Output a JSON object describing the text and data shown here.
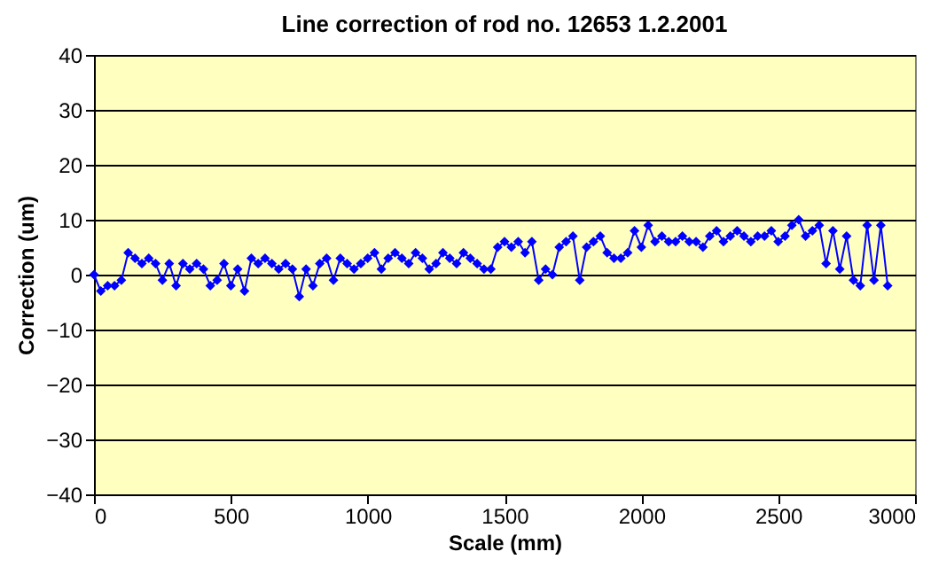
{
  "chart_data": {
    "type": "line",
    "title": "Line correction of rod no. 12653 1.2.2001",
    "xlabel": "Scale (mm)",
    "ylabel": "Correction (um)",
    "series": [
      {
        "color": "#0000ff",
        "x": [
          0,
          25,
          50,
          75,
          100,
          125,
          150,
          175,
          200,
          225,
          250,
          275,
          300,
          325,
          350,
          375,
          400,
          425,
          450,
          475,
          500,
          525,
          550,
          575,
          600,
          625,
          650,
          675,
          700,
          725,
          750,
          775,
          800,
          825,
          850,
          875,
          900,
          925,
          950,
          975,
          1000,
          1025,
          1050,
          1075,
          1100,
          1125,
          1150,
          1175,
          1200,
          1225,
          1250,
          1275,
          1300,
          1325,
          1350,
          1375,
          1400,
          1425,
          1450,
          1475,
          1500,
          1525,
          1550,
          1575,
          1600,
          1625,
          1650,
          1675,
          1700,
          1725,
          1750,
          1775,
          1800,
          1825,
          1850,
          1875,
          1900,
          1925,
          1950,
          1975,
          2000,
          2025,
          2050,
          2075,
          2100,
          2125,
          2150,
          2175,
          2200,
          2225,
          2250,
          2275,
          2300,
          2325,
          2350,
          2375,
          2400,
          2425,
          2450,
          2475,
          2500,
          2525,
          2550,
          2575,
          2600,
          2625,
          2650,
          2675,
          2700,
          2725,
          2750,
          2775,
          2800,
          2825,
          2850,
          2875,
          2900
        ],
        "values": [
          0,
          -3,
          -2,
          -2,
          -1,
          4,
          3,
          2,
          3,
          2,
          -1,
          2,
          -2,
          2,
          1,
          2,
          1,
          -2,
          -1,
          2,
          -2,
          1,
          -3,
          3,
          2,
          3,
          2,
          1,
          2,
          1,
          -4,
          1,
          -2,
          2,
          3,
          -1,
          3,
          2,
          1,
          2,
          3,
          4,
          1,
          3,
          4,
          3,
          2,
          4,
          3,
          1,
          2,
          4,
          3,
          2,
          4,
          3,
          2,
          1,
          1,
          5,
          6,
          5,
          6,
          4,
          6,
          -1,
          1,
          0,
          5,
          6,
          7,
          -1,
          5,
          6,
          7,
          4,
          3,
          3,
          4,
          8,
          5,
          9,
          6,
          7,
          6,
          6,
          7,
          6,
          6,
          5,
          7,
          8,
          6,
          7,
          8,
          7,
          6,
          7,
          7,
          8,
          6,
          7,
          9,
          10,
          7,
          8,
          9,
          2,
          8,
          1,
          7,
          -1,
          -2,
          9,
          -1,
          9,
          -2
        ]
      }
    ],
    "xlim": [
      0,
      3000
    ],
    "xticks": [
      0,
      500,
      1000,
      1500,
      2000,
      2500,
      3000
    ],
    "ylim": [
      -40,
      40
    ],
    "yticks": [
      -40,
      -30,
      -20,
      -10,
      0,
      10,
      20,
      30,
      40
    ],
    "grid": "y",
    "marker": "diamond",
    "line_style": "solid"
  }
}
